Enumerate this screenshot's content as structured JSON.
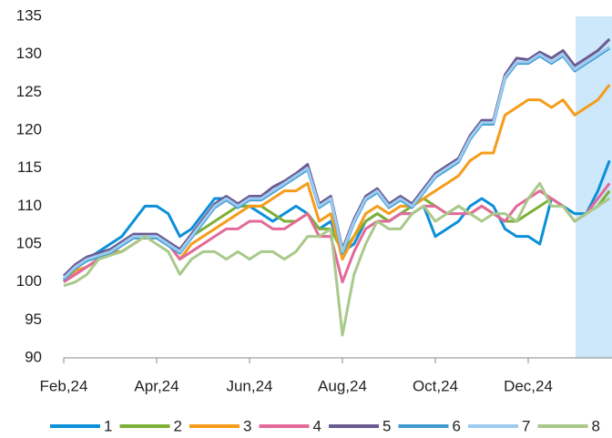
{
  "chart_data": {
    "type": "line",
    "categories": [
      "Feb,24",
      null,
      null,
      null,
      null,
      null,
      null,
      null,
      "Apr,24",
      null,
      null,
      null,
      null,
      null,
      null,
      null,
      "Jun,24",
      null,
      null,
      null,
      null,
      null,
      null,
      null,
      "Aug,24",
      null,
      null,
      null,
      null,
      null,
      null,
      null,
      "Oct,24",
      null,
      null,
      null,
      null,
      null,
      null,
      null,
      "Dec,24",
      null,
      null,
      null,
      null,
      null,
      null,
      null
    ],
    "ylim": [
      90,
      135
    ],
    "yticks": [
      90,
      95,
      100,
      105,
      110,
      115,
      120,
      125,
      130,
      135
    ],
    "grid": false,
    "legend": "bottom",
    "series": [
      {
        "name": "1",
        "color": "#0b8fd9",
        "values": [
          100,
          102,
          103,
          104,
          105,
          106,
          108,
          110,
          110,
          109,
          106,
          107,
          109,
          111,
          111,
          110,
          110,
          109,
          108,
          109,
          110,
          109,
          107,
          108,
          104,
          105,
          108,
          109,
          108,
          109,
          109,
          110,
          106,
          107,
          108,
          110,
          111,
          110,
          107,
          106,
          106,
          105,
          111,
          110,
          109,
          109,
          112,
          116
        ]
      },
      {
        "name": "2",
        "color": "#7cb036",
        "values": [
          100,
          101,
          102,
          103,
          104,
          104,
          105,
          106,
          106,
          105,
          104,
          106,
          107,
          108,
          109,
          110,
          110,
          110,
          109,
          108,
          108,
          109,
          107,
          107,
          104,
          106,
          108,
          109,
          108,
          109,
          110,
          111,
          110,
          109,
          110,
          109,
          110,
          109,
          108,
          108,
          109,
          110,
          111,
          110,
          108,
          109,
          110,
          112
        ]
      },
      {
        "name": "3",
        "color": "#f59c1a",
        "values": [
          100,
          101.5,
          102,
          103,
          104,
          104,
          105,
          106,
          106,
          105,
          103,
          105,
          106,
          107,
          108,
          109,
          110,
          110,
          111,
          112,
          112,
          113,
          108,
          109,
          103,
          106,
          109,
          110,
          109,
          110,
          110,
          111,
          112,
          113,
          114,
          116,
          117,
          117,
          122,
          123,
          124,
          124,
          123,
          124,
          122,
          123,
          124,
          126
        ]
      },
      {
        "name": "4",
        "color": "#e2699a",
        "values": [
          100,
          101,
          102,
          103,
          104,
          105,
          106,
          106,
          106,
          105,
          103,
          104,
          105,
          106,
          107,
          107,
          108,
          108,
          107,
          107,
          108,
          109,
          106,
          106,
          100,
          104,
          107,
          108,
          108,
          109,
          109,
          110,
          110,
          109,
          109,
          109,
          110,
          109,
          108,
          110,
          111,
          112,
          111,
          110,
          108,
          109,
          111,
          113
        ]
      },
      {
        "name": "5",
        "color": "#6b5b92",
        "values": [
          100.8,
          102.3,
          103.3,
          103.8,
          104.3,
          105.3,
          106.3,
          106.3,
          106.3,
          105.3,
          104.3,
          106.3,
          108.3,
          110.3,
          111.3,
          110.3,
          111.3,
          111.3,
          112.5,
          113.3,
          114.3,
          115.5,
          110.3,
          111.3,
          104.3,
          108.3,
          111.3,
          112.3,
          110.3,
          111.3,
          110.3,
          112.3,
          114.3,
          115.3,
          116.3,
          119.3,
          121.3,
          121.3,
          127.3,
          129.5,
          129.3,
          130.3,
          129.5,
          130.5,
          128.5,
          129.5,
          130.5,
          132
        ]
      },
      {
        "name": "6",
        "color": "#3d9ad1",
        "values": [
          100.3,
          101.8,
          102.8,
          103.3,
          103.8,
          104.8,
          105.8,
          105.8,
          105.8,
          104.8,
          103.8,
          105.8,
          107.8,
          109.8,
          110.8,
          109.8,
          110.8,
          110.8,
          111.8,
          112.8,
          113.8,
          114.8,
          109.8,
          110.8,
          103.8,
          107.8,
          110.8,
          111.8,
          109.8,
          110.8,
          109.8,
          111.8,
          113.8,
          114.8,
          115.8,
          118.8,
          120.8,
          120.8,
          126.8,
          128.8,
          128.8,
          129.8,
          128.8,
          129.8,
          127.8,
          128.8,
          129.8,
          130.8
        ]
      },
      {
        "name": "7",
        "color": "#9dcbf0",
        "values": [
          100.5,
          102,
          103,
          103.5,
          104,
          105,
          106,
          106,
          106,
          105,
          104,
          106,
          108,
          110,
          111,
          110,
          111,
          111,
          112,
          113,
          114,
          115,
          110,
          111,
          104,
          108,
          111,
          112,
          110,
          111,
          110,
          112,
          114,
          115,
          116,
          119,
          121,
          121,
          127,
          129,
          129,
          130,
          129,
          130,
          128,
          129,
          130,
          131
        ]
      },
      {
        "name": "8",
        "color": "#a9c98b",
        "values": [
          99.5,
          100,
          101,
          103,
          103.5,
          104,
          105,
          106,
          105,
          104,
          101,
          103,
          104,
          104,
          103,
          104,
          103,
          104,
          104,
          103,
          104,
          106,
          106,
          107,
          93,
          101,
          105,
          108,
          107,
          107,
          109,
          110,
          108,
          109,
          110,
          109,
          108,
          109,
          109,
          108,
          111,
          113,
          110,
          110,
          108,
          109,
          110,
          111
        ]
      }
    ]
  }
}
